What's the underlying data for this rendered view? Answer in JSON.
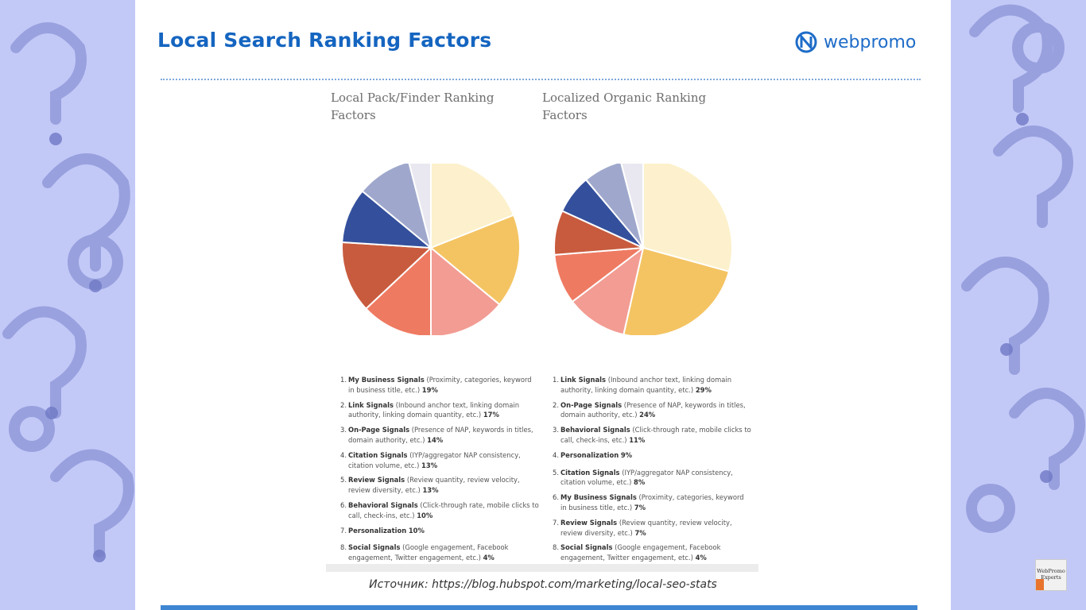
{
  "slide": {
    "title": "Local Search Ranking Factors",
    "logo_text": "webpromo",
    "source": "Источник: https://blog.hubspot.com/marketing/local-seo-stats",
    "badge_line1": "WebPromo",
    "badge_line2": "Experts"
  },
  "colors": {
    "title": "#1565c0",
    "slices": [
      "#fcf1cc",
      "#f4c463",
      "#f29c93",
      "#ef7a62",
      "#c85b3e",
      "#34509c",
      "#9fa8cc",
      "#e9e8f0"
    ]
  },
  "chart_data": [
    {
      "type": "pie",
      "title": "Local Pack/Finder Ranking Factors",
      "slices": [
        {
          "num": "1.",
          "name": "My Business Signals",
          "detail": "(Proximity, categories, keyword in business title, etc.)",
          "value": 19
        },
        {
          "num": "2.",
          "name": "Link Signals",
          "detail": "(Inbound anchor text, linking domain authority, linking domain quantity, etc.)",
          "value": 17
        },
        {
          "num": "3.",
          "name": "On-Page Signals",
          "detail": "(Presence of NAP, keywords in titles, domain authority, etc.)",
          "value": 14
        },
        {
          "num": "4.",
          "name": "Citation Signals",
          "detail": "(IYP/aggregator NAP consistency, citation volume, etc.)",
          "value": 13
        },
        {
          "num": "5.",
          "name": "Review Signals",
          "detail": "(Review quantity, review velocity, review diversity, etc.)",
          "value": 13
        },
        {
          "num": "6.",
          "name": "Behavioral Signals",
          "detail": "(Click-through rate, mobile clicks to call, check-ins, etc.)",
          "value": 10
        },
        {
          "num": "7.",
          "name": "Personalization",
          "detail": "",
          "value": 10
        },
        {
          "num": "8.",
          "name": "Social Signals",
          "detail": "(Google engagement, Facebook engagement, Twitter engagement, etc.)",
          "value": 4
        }
      ]
    },
    {
      "type": "pie",
      "title": "Localized Organic Ranking Factors",
      "slices": [
        {
          "num": "1.",
          "name": "Link Signals",
          "detail": "(Inbound anchor text, linking domain authority, linking domain quantity, etc.)",
          "value": 29
        },
        {
          "num": "2.",
          "name": "On-Page Signals",
          "detail": "(Presence of NAP, keywords in titles, domain authority, etc.)",
          "value": 24
        },
        {
          "num": "3.",
          "name": "Behavioral Signals",
          "detail": "(Click-through rate, mobile clicks to call, check-ins, etc.)",
          "value": 11
        },
        {
          "num": "4.",
          "name": "Personalization",
          "detail": "",
          "value": 9
        },
        {
          "num": "5.",
          "name": "Citation Signals",
          "detail": "(IYP/aggregator NAP consistency, citation volume, etc.)",
          "value": 8
        },
        {
          "num": "6.",
          "name": "My Business Signals",
          "detail": "(Proximity, categories, keyword in business title, etc.)",
          "value": 7
        },
        {
          "num": "7.",
          "name": "Review Signals",
          "detail": "(Review quantity, review velocity, review diversity, etc.)",
          "value": 7
        },
        {
          "num": "8.",
          "name": "Social Signals",
          "detail": "(Google engagement, Facebook engagement, Twitter engagement, etc.)",
          "value": 4
        }
      ]
    }
  ]
}
